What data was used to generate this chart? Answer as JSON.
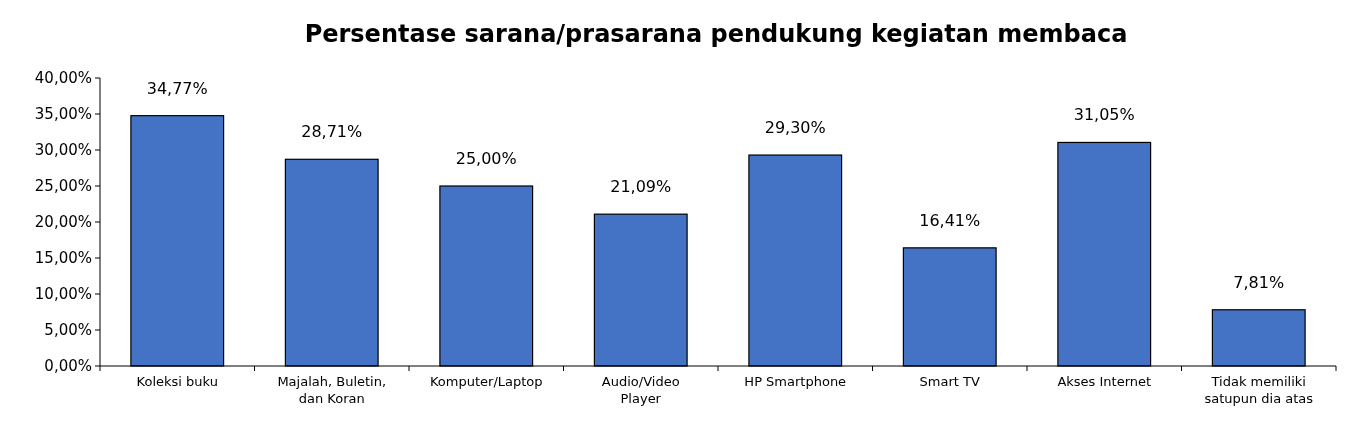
{
  "chart_data": {
    "type": "bar",
    "title": "Persentase sarana/prasarana pendukung kegiatan membaca",
    "categories": [
      "Koleksi buku",
      "Majalah, Buletin, dan Koran",
      "Komputer/Laptop",
      "Audio/Video Player",
      "HP Smartphone",
      "Smart TV",
      "Akses Internet",
      "Tidak memiliki satupun dia atas"
    ],
    "values": [
      34.77,
      28.71,
      25.0,
      21.09,
      29.3,
      16.41,
      31.05,
      7.81
    ],
    "value_labels": [
      "34,77%",
      "28,71%",
      "25,00%",
      "21,09%",
      "29,30%",
      "16,41%",
      "31,05%",
      "7,81%"
    ],
    "color": "#4472c4",
    "ylim": [
      0,
      40
    ],
    "yticks": [
      {
        "value": 0,
        "label": "0,00%"
      },
      {
        "value": 5,
        "label": "5,00%"
      },
      {
        "value": 10,
        "label": "10,00%"
      },
      {
        "value": 15,
        "label": "15,00%"
      },
      {
        "value": 20,
        "label": "20,00%"
      },
      {
        "value": 25,
        "label": "25,00%"
      },
      {
        "value": 30,
        "label": "30,00%"
      },
      {
        "value": 35,
        "label": "35,00%"
      },
      {
        "value": 40,
        "label": "40,00%"
      }
    ],
    "grid": false
  }
}
